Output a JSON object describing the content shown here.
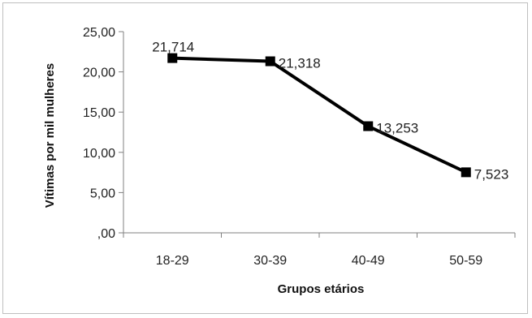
{
  "chart_data": {
    "type": "line",
    "title": "",
    "xlabel": "Grupos etários",
    "ylabel": "Vítimas por mil mulheres",
    "categories": [
      "18-29",
      "30-39",
      "40-49",
      "50-59"
    ],
    "series": [
      {
        "values": [
          21.714,
          21.318,
          13.253,
          7.523
        ],
        "data_labels": [
          "21,714",
          "21,318",
          "13,253",
          "7,523"
        ],
        "color": "#000000",
        "marker": "square"
      }
    ],
    "ylim": [
      0,
      25
    ],
    "yticks": [
      0,
      5,
      10,
      15,
      20,
      25
    ],
    "ytick_labels": [
      ",00",
      "5,00",
      "10,00",
      "15,00",
      "20,00",
      "25,00"
    ],
    "grid": false,
    "legend": "none"
  }
}
